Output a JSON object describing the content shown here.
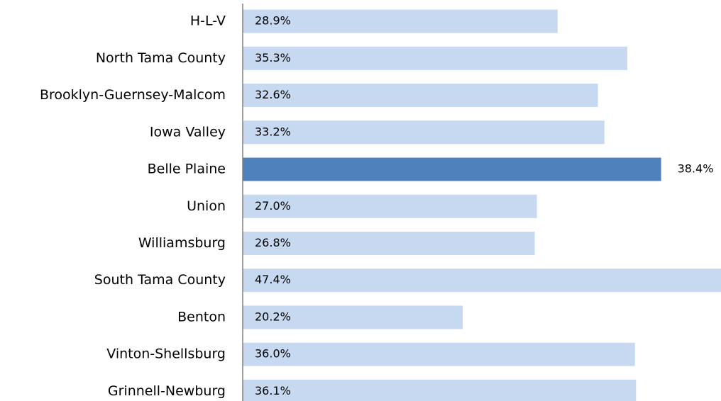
{
  "chart_data": {
    "type": "bar",
    "orientation": "horizontal",
    "categories": [
      "H-L-V",
      "North Tama County",
      "Brooklyn-Guernsey-Malcom",
      "Iowa Valley",
      "Belle Plaine",
      "Union",
      "Williamsburg",
      "South Tama County",
      "Benton",
      "Vinton-Shellsburg",
      "Grinnell-Newburg"
    ],
    "values": [
      28.9,
      35.3,
      32.6,
      33.2,
      38.4,
      27.0,
      26.8,
      47.4,
      20.2,
      36.0,
      36.1
    ],
    "value_labels": [
      "28.9%",
      "35.3%",
      "32.6%",
      "33.2%",
      "38.4%",
      "27.0%",
      "26.8%",
      "47.4%",
      "20.2%",
      "36.0%",
      "36.1%"
    ],
    "colors": [
      "#c6d9f1",
      "#c6d9f1",
      "#c6d9f1",
      "#c6d9f1",
      "#4f81bd",
      "#c6d9f1",
      "#c6d9f1",
      "#c6d9f1",
      "#c6d9f1",
      "#c6d9f1",
      "#c6d9f1"
    ],
    "xlim": [
      0,
      44
    ],
    "grid": false
  }
}
